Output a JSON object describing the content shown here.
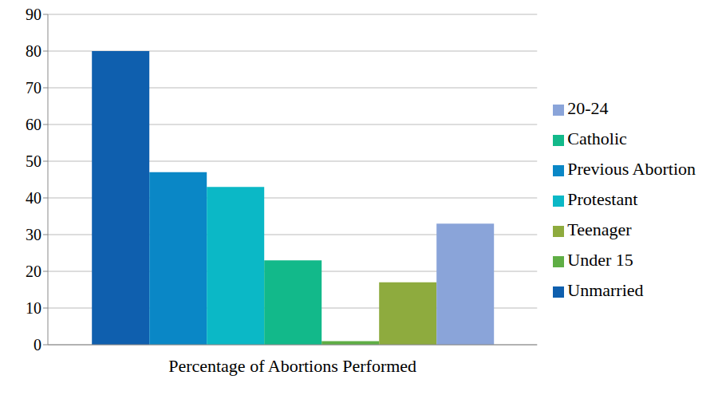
{
  "chart_data": {
    "type": "bar",
    "categories": [
      "Percentage of Abortions Performed"
    ],
    "series": [
      {
        "name": "Unmarried",
        "color": "#0f5fae",
        "values": [
          80
        ]
      },
      {
        "name": "Previous Abortion",
        "color": "#0a87c6",
        "values": [
          47
        ]
      },
      {
        "name": "Protestant",
        "color": "#0bb8c6",
        "values": [
          43
        ]
      },
      {
        "name": "Catholic",
        "color": "#12b98a",
        "values": [
          23
        ]
      },
      {
        "name": "Under 15",
        "color": "#5fae45",
        "values": [
          1
        ]
      },
      {
        "name": "Teenager",
        "color": "#8eab3e",
        "values": [
          17
        ]
      },
      {
        "name": "20-24",
        "color": "#8aa4d9",
        "values": [
          33
        ]
      }
    ],
    "ylim": [
      0,
      90
    ],
    "yticks": [
      0,
      10,
      20,
      30,
      40,
      50,
      60,
      70,
      80,
      90
    ],
    "grid": true,
    "legend": "right"
  }
}
